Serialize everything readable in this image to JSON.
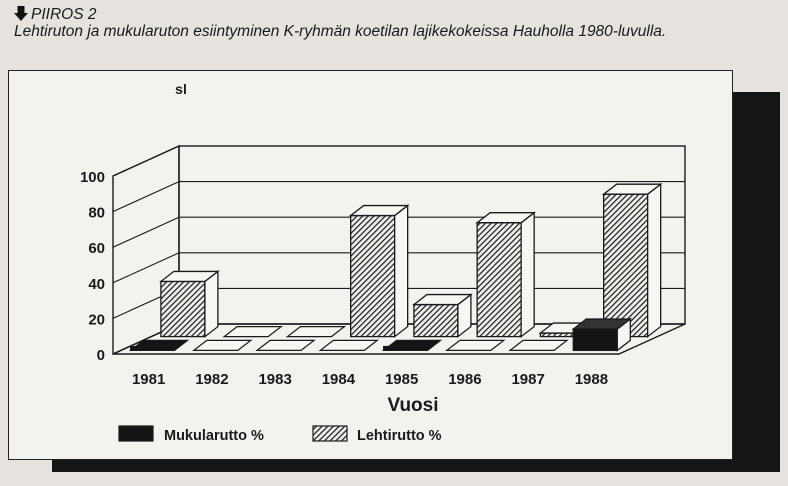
{
  "caption": {
    "label": "PIIROS 2",
    "text": "Lehtiruton ja mukularuton esiintyminen K-ryhmän koetilan lajikekokeissa Hauholla 1980-luvulla."
  },
  "colors": {
    "frame_bg": "#f4f2ee",
    "shadow": "#151515",
    "mukularutto_fill": "#141414",
    "lehtirutto_fill": "hatched",
    "ink": "#1a1a1a"
  },
  "chart_data": {
    "type": "bar",
    "style": "3d-clustered",
    "categories": [
      "1981",
      "1982",
      "1983",
      "1984",
      "1985",
      "1986",
      "1987",
      "1988"
    ],
    "series": [
      {
        "name": "Mukularutto %",
        "values": [
          1,
          0,
          0,
          0,
          1,
          0,
          0,
          12
        ]
      },
      {
        "name": "Lehtirutto %",
        "values": [
          31,
          0,
          0,
          68,
          18,
          64,
          2,
          80
        ]
      }
    ],
    "yticks": [
      "0",
      "20",
      "40",
      "60",
      "80",
      "100"
    ],
    "ylim": [
      0,
      100
    ],
    "ylabel": "sl",
    "xlabel": "Vuosi",
    "grid": true,
    "legend": "bottom"
  }
}
